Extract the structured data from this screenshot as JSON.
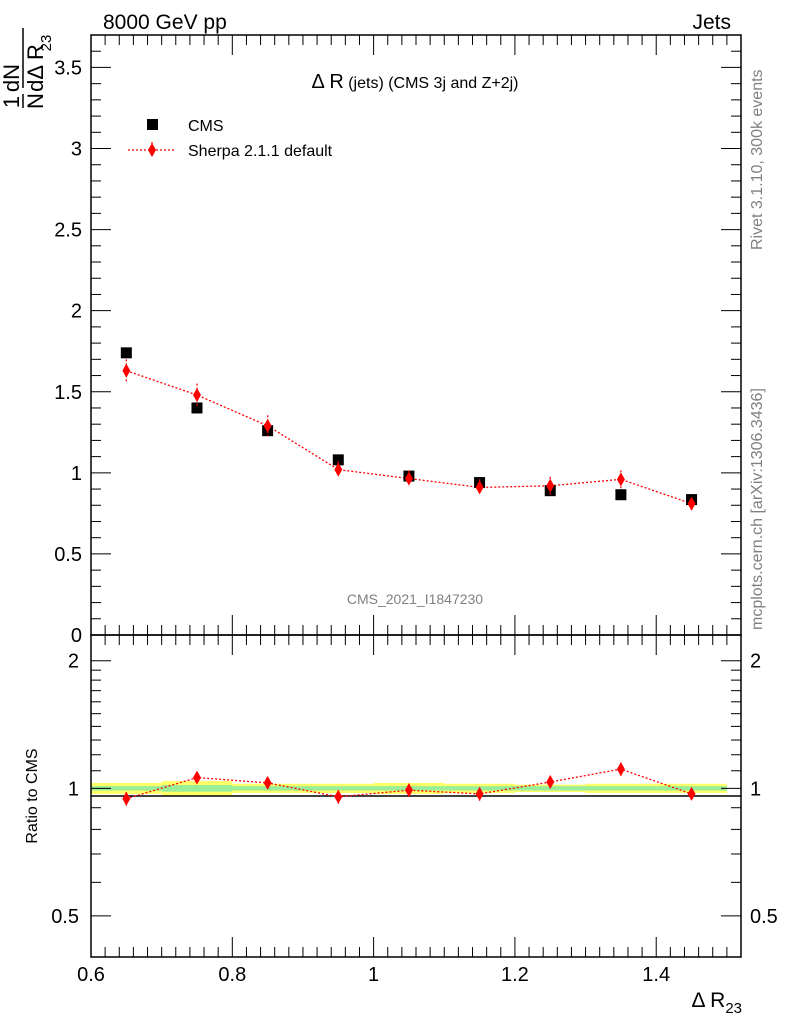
{
  "header": {
    "left": "8000 GeV pp",
    "right": "Jets"
  },
  "side_labels": {
    "rivet": "Rivet 3.1.10,  300k events",
    "mcplots": "mcplots.cern.ch [arXiv:1306.3436]"
  },
  "chart_data": {
    "type": "scatter",
    "title_main": "Δ R",
    "title_rest": " (jets) (CMS 3j and Z+2j)",
    "analysis_label": "CMS_2021_I1847230",
    "xlabel_main": "Δ R",
    "xlabel_sub": "23",
    "ylabel": {
      "frac_num": "1",
      "frac_den": "N",
      "d_num": "dN",
      "d_den": "dΔ R",
      "d_den_sub": "23"
    },
    "ratio_ylabel": "Ratio to CMS",
    "xlim": [
      0.6,
      1.52
    ],
    "ylim_main": [
      0,
      3.7
    ],
    "ylim_ratio": [
      0.4,
      2.3
    ],
    "x_ticks": [
      "0.6",
      "0.8",
      "1",
      "1.2",
      "1.4"
    ],
    "y_ticks_main": [
      "0",
      "0.5",
      "1",
      "1.5",
      "2",
      "2.5",
      "3",
      "3.5"
    ],
    "y_ticks_ratio": [
      "0.5",
      "1",
      "2"
    ],
    "legend": [
      {
        "label": "CMS",
        "marker": "square",
        "color": "#000000"
      },
      {
        "label": "Sherpa 2.1.1 default",
        "marker": "diamond",
        "color": "#ff0000"
      }
    ],
    "x": [
      0.65,
      0.75,
      0.85,
      0.95,
      1.05,
      1.15,
      1.25,
      1.35,
      1.45
    ],
    "bin_edges": [
      0.6,
      0.7,
      0.8,
      0.9,
      1.0,
      1.1,
      1.2,
      1.3,
      1.4,
      1.5
    ],
    "series": [
      {
        "name": "CMS",
        "values": [
          1.74,
          1.4,
          1.26,
          1.08,
          0.98,
          0.94,
          0.89,
          0.865,
          0.835
        ],
        "band_rel_inner": [
          0.012,
          0.018,
          0.012,
          0.012,
          0.012,
          0.012,
          0.012,
          0.012,
          0.012
        ],
        "band_rel_outer": [
          0.03,
          0.04,
          0.025,
          0.025,
          0.03,
          0.025,
          0.02,
          0.025,
          0.025
        ]
      },
      {
        "name": "Sherpa 2.1.1 default",
        "values": [
          1.63,
          1.48,
          1.29,
          1.02,
          0.965,
          0.91,
          0.92,
          0.96,
          0.81
        ],
        "errors": [
          0.07,
          0.07,
          0.065,
          0.05,
          0.05,
          0.05,
          0.055,
          0.055,
          0.04
        ],
        "ratio": [
          0.945,
          1.06,
          1.03,
          0.955,
          0.99,
          0.97,
          1.035,
          1.11,
          0.97
        ],
        "ratio_errors": [
          0.035,
          0.03,
          0.03,
          0.035,
          0.035,
          0.035,
          0.035,
          0.04,
          0.03
        ]
      }
    ],
    "colors": {
      "cms": "#000000",
      "sherpa": "#ff0000",
      "band_outer": "#ffff66",
      "band_inner": "#99ee99"
    }
  }
}
